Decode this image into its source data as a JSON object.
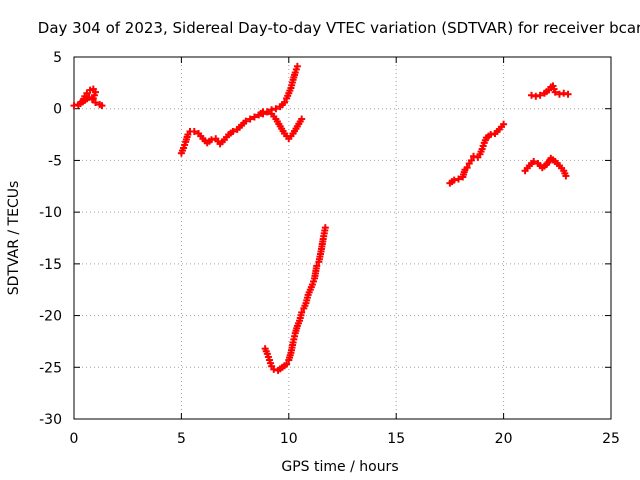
{
  "chart_data": {
    "type": "scatter",
    "title": "Day 304 of 2023, Sidereal Day-to-day VTEC variation (SDTVAR) for receiver bcar",
    "xlabel": "GPS time / hours",
    "ylabel": "SDTVAR / TECUs",
    "xlim": [
      0,
      25
    ],
    "ylim": [
      -30,
      5
    ],
    "xticks": [
      0,
      5,
      10,
      15,
      20,
      25
    ],
    "yticks": [
      -30,
      -25,
      -20,
      -15,
      -10,
      -5,
      0,
      5
    ],
    "grid": true,
    "marker_color": "#ff0000",
    "series": [
      {
        "segments": [
          [
            [
              0.0,
              0.3
            ],
            [
              0.2,
              0.4
            ],
            [
              0.4,
              0.7
            ],
            [
              0.5,
              1.2
            ],
            [
              0.6,
              1.5
            ],
            [
              0.75,
              1.8
            ],
            [
              0.9,
              1.9
            ],
            [
              1.0,
              1.6
            ],
            [
              0.9,
              1.0
            ],
            [
              1.0,
              0.6
            ],
            [
              1.2,
              0.4
            ],
            [
              1.3,
              0.3
            ]
          ],
          [
            [
              0.3,
              0.5
            ],
            [
              0.5,
              0.8
            ],
            [
              0.7,
              1.1
            ],
            [
              0.85,
              0.9
            ]
          ],
          [
            [
              5.0,
              -4.3
            ],
            [
              5.1,
              -3.8
            ],
            [
              5.2,
              -3.2
            ],
            [
              5.3,
              -2.5
            ],
            [
              5.4,
              -2.2
            ],
            [
              5.6,
              -2.2
            ],
            [
              5.8,
              -2.4
            ],
            [
              6.0,
              -2.9
            ],
            [
              6.2,
              -3.3
            ],
            [
              6.4,
              -3.0
            ],
            [
              6.6,
              -2.9
            ],
            [
              6.8,
              -3.4
            ],
            [
              7.0,
              -3.0
            ],
            [
              7.2,
              -2.5
            ],
            [
              7.4,
              -2.2
            ],
            [
              7.6,
              -2.0
            ],
            [
              7.8,
              -1.6
            ],
            [
              8.0,
              -1.2
            ],
            [
              8.2,
              -1.0
            ],
            [
              8.4,
              -0.8
            ],
            [
              8.6,
              -0.6
            ],
            [
              8.8,
              -0.3
            ],
            [
              9.0,
              -0.3
            ],
            [
              9.2,
              -0.5
            ],
            [
              9.4,
              -1.0
            ],
            [
              9.6,
              -1.7
            ],
            [
              9.8,
              -2.4
            ],
            [
              10.0,
              -2.9
            ],
            [
              10.2,
              -2.4
            ],
            [
              10.4,
              -1.7
            ],
            [
              10.6,
              -1.0
            ]
          ],
          [
            [
              8.8,
              -0.5
            ],
            [
              9.0,
              -0.3
            ],
            [
              9.2,
              -0.1
            ],
            [
              9.4,
              0.0
            ],
            [
              9.6,
              0.2
            ],
            [
              9.8,
              0.6
            ],
            [
              9.9,
              1.0
            ],
            [
              10.0,
              1.5
            ],
            [
              10.1,
              2.0
            ],
            [
              10.2,
              2.8
            ],
            [
              10.3,
              3.5
            ],
            [
              10.4,
              4.1
            ]
          ],
          [
            [
              8.9,
              -23.2
            ],
            [
              9.0,
              -23.7
            ],
            [
              9.1,
              -24.3
            ],
            [
              9.2,
              -24.9
            ],
            [
              9.3,
              -25.2
            ],
            [
              9.5,
              -25.3
            ],
            [
              9.7,
              -25.0
            ],
            [
              9.9,
              -24.7
            ],
            [
              10.0,
              -24.3
            ],
            [
              10.1,
              -23.6
            ],
            [
              10.2,
              -22.6
            ],
            [
              10.3,
              -21.7
            ],
            [
              10.4,
              -21.0
            ],
            [
              10.5,
              -20.5
            ],
            [
              10.6,
              -19.7
            ],
            [
              10.7,
              -19.3
            ],
            [
              10.8,
              -18.8
            ],
            [
              10.9,
              -18.0
            ],
            [
              11.0,
              -17.5
            ],
            [
              11.1,
              -17.0
            ],
            [
              11.2,
              -16.4
            ],
            [
              11.3,
              -15.2
            ],
            [
              11.4,
              -14.8
            ],
            [
              11.5,
              -13.8
            ],
            [
              11.6,
              -12.6
            ],
            [
              11.7,
              -11.5
            ]
          ],
          [
            [
              17.5,
              -7.2
            ],
            [
              17.7,
              -6.9
            ],
            [
              17.9,
              -6.8
            ],
            [
              18.1,
              -6.6
            ],
            [
              18.2,
              -5.9
            ],
            [
              18.3,
              -5.7
            ],
            [
              18.4,
              -5.3
            ],
            [
              18.5,
              -5.0
            ],
            [
              18.6,
              -4.6
            ],
            [
              18.8,
              -4.7
            ],
            [
              18.9,
              -4.4
            ],
            [
              19.0,
              -3.9
            ],
            [
              19.1,
              -3.3
            ],
            [
              19.2,
              -2.8
            ],
            [
              19.4,
              -2.5
            ],
            [
              19.6,
              -2.4
            ],
            [
              19.8,
              -2.0
            ],
            [
              20.0,
              -1.5
            ]
          ],
          [
            [
              21.3,
              1.3
            ],
            [
              21.5,
              1.2
            ],
            [
              21.7,
              1.3
            ],
            [
              21.9,
              1.5
            ],
            [
              22.1,
              1.8
            ],
            [
              22.2,
              2.1
            ],
            [
              22.3,
              2.2
            ],
            [
              22.4,
              1.6
            ],
            [
              22.6,
              1.4
            ],
            [
              22.8,
              1.5
            ],
            [
              23.0,
              1.4
            ]
          ],
          [
            [
              21.0,
              -6.0
            ],
            [
              21.2,
              -5.5
            ],
            [
              21.4,
              -5.1
            ],
            [
              21.6,
              -5.3
            ],
            [
              21.8,
              -5.7
            ],
            [
              22.0,
              -5.4
            ],
            [
              22.2,
              -4.8
            ],
            [
              22.4,
              -5.1
            ],
            [
              22.6,
              -5.5
            ],
            [
              22.8,
              -6.0
            ],
            [
              22.9,
              -6.5
            ]
          ]
        ]
      }
    ]
  }
}
